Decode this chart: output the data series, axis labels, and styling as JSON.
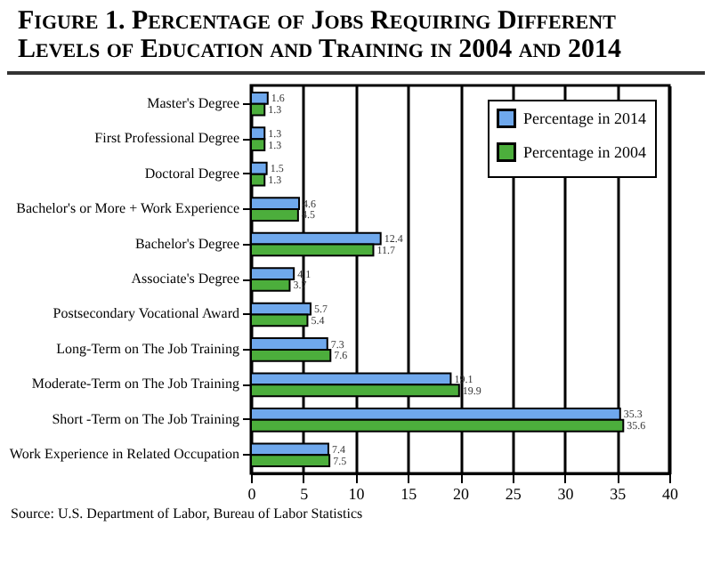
{
  "chart_data": {
    "type": "bar",
    "orientation": "horizontal",
    "title": "Figure 1. Percentage of Jobs Requiring Different Levels of Education and Training in 2004 and 2014",
    "categories": [
      "Master's Degree",
      "First Professional Degree",
      "Doctoral Degree",
      "Bachelor's or More + Work Experience",
      "Bachelor's Degree",
      "Associate's Degree",
      "Postsecondary Vocational Award",
      "Long-Term on The Job Training",
      "Moderate-Term on The Job Training",
      "Short -Term on The Job Training",
      "Work Experience in Related Occupation"
    ],
    "series": [
      {
        "name": "Percentage in 2014",
        "color": "#6fa8ec",
        "values": [
          1.6,
          1.3,
          1.5,
          4.6,
          12.4,
          4.1,
          5.7,
          7.3,
          19.1,
          35.3,
          7.4
        ]
      },
      {
        "name": "Percentage in 2004",
        "color": "#4cae3c",
        "values": [
          1.3,
          1.3,
          1.3,
          4.5,
          11.7,
          3.7,
          5.4,
          7.6,
          19.9,
          35.6,
          7.5
        ]
      }
    ],
    "xlim": [
      0,
      40
    ],
    "xticks": [
      0,
      5,
      10,
      15,
      20,
      25,
      30,
      35,
      40
    ],
    "grid": "x",
    "legend": "top right",
    "data_labels": true,
    "annotations": [
      "Source: U.S. Department of Labor, Bureau of Labor Statistics"
    ]
  }
}
